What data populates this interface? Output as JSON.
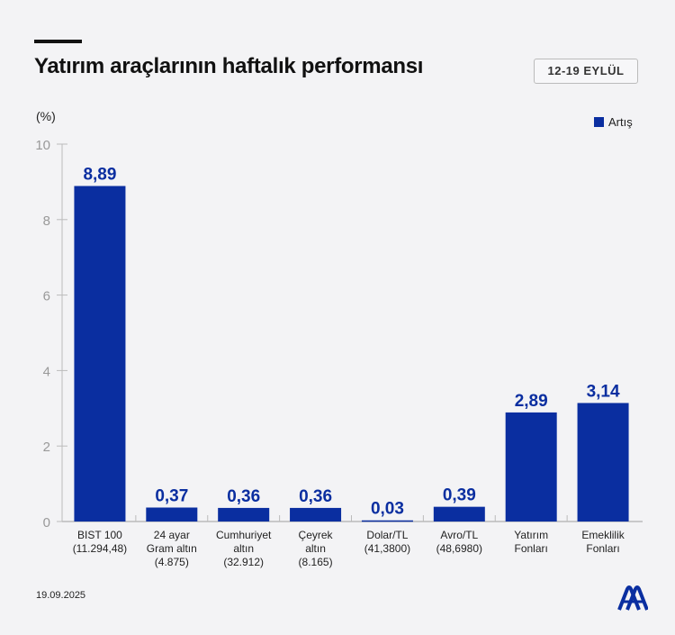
{
  "header": {
    "title": "Yatırım araçlarının haftalık performansı",
    "period": "12-19 EYLÜL"
  },
  "footer": {
    "date": "19.09.2025",
    "logo": "AA"
  },
  "colors": {
    "bar": "#0a2ea0",
    "label": "#0a2ea0",
    "background": "#f3f3f5"
  },
  "chart_data": {
    "type": "bar",
    "ylabel": "(%)",
    "ylim": [
      0,
      10
    ],
    "yticks": [
      0,
      2,
      4,
      6,
      8,
      10
    ],
    "grid": false,
    "legend_position": "top-right",
    "categories": [
      [
        "BIST 100",
        "(11.294,48)"
      ],
      [
        "24 ayar",
        "Gram altın",
        "(4.875)"
      ],
      [
        "Cumhuriyet",
        "altın",
        "(32.912)"
      ],
      [
        "Çeyrek",
        "altın",
        "(8.165)"
      ],
      [
        "Dolar/TL",
        "(41,3800)"
      ],
      [
        "Avro/TL",
        "(48,6980)"
      ],
      [
        "Yatırım",
        "Fonları"
      ],
      [
        "Emeklilik",
        "Fonları"
      ]
    ],
    "series": [
      {
        "name": "Artış",
        "values": [
          8.89,
          0.37,
          0.36,
          0.36,
          0.03,
          0.39,
          2.89,
          3.14
        ],
        "labels": [
          "8,89",
          "0,37",
          "0,36",
          "0,36",
          "0,03",
          "0,39",
          "2,89",
          "3,14"
        ]
      }
    ]
  }
}
